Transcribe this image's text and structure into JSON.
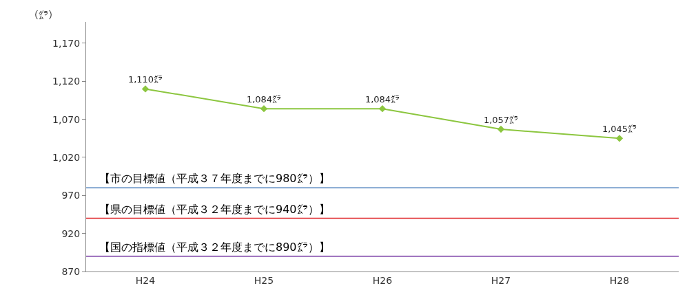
{
  "chart_data": {
    "type": "line",
    "ylabel": "（㌘）",
    "categories": [
      "H24",
      "H25",
      "H26",
      "H27",
      "H28"
    ],
    "series": [
      {
        "color": "#8cc63f",
        "values": [
          1110,
          1084,
          1084,
          1057,
          1045
        ],
        "value_labels": [
          "1,110㌘",
          "1,084㌘",
          "1,084㌘",
          "1,057㌘",
          "1,045㌘"
        ]
      }
    ],
    "ylim": [
      870,
      1198
    ],
    "yticks": [
      {
        "value": 870,
        "label": "870"
      },
      {
        "value": 920,
        "label": "920"
      },
      {
        "value": 970,
        "label": "970"
      },
      {
        "value": 1020,
        "label": "1,020"
      },
      {
        "value": 1070,
        "label": "1,070"
      },
      {
        "value": 1120,
        "label": "1,120"
      },
      {
        "value": 1170,
        "label": "1,170"
      }
    ],
    "ref_lines": [
      {
        "axis": "y",
        "value": 980,
        "label": "【市の目標値（平成３７年度までに980㌘）】",
        "color": "#4f81bd"
      },
      {
        "axis": "y",
        "value": 940,
        "label": "【県の目標値（平成３２年度までに940㌘）】",
        "color": "#e0262b"
      },
      {
        "axis": "y",
        "value": 890,
        "label": "【国の指標値（平成３２年度までに890㌘）】",
        "color": "#7030a0"
      }
    ],
    "marker": "diamond",
    "line_style": "solid"
  }
}
